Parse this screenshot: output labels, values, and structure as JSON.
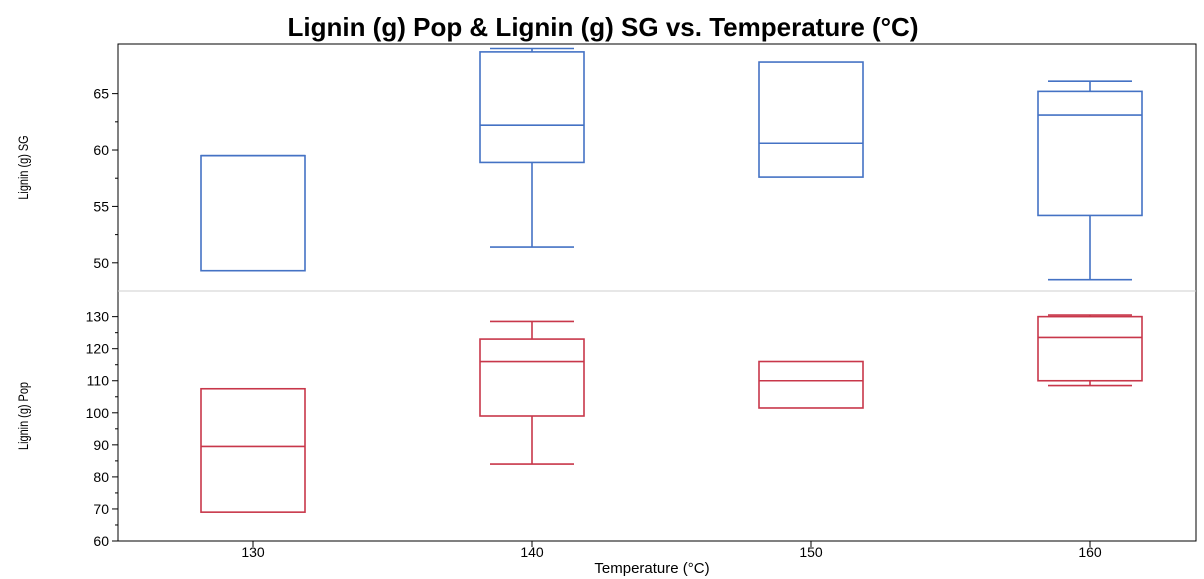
{
  "chart_data": {
    "type": "boxplot",
    "title": "Lignin (g) Pop & Lignin (g) SG vs. Temperature (°C)",
    "xlabel": "Temperature (°C)",
    "categories": [
      "130",
      "140",
      "150",
      "160"
    ],
    "legend": "none",
    "grid": false,
    "colors": {
      "sg": "#4472C4",
      "pop": "#C8374A"
    },
    "panels": [
      {
        "ylabel": "Lignin (g) SG",
        "ylim": [
          47.5,
          69.4
        ],
        "yticks": [
          50,
          55,
          60,
          65
        ],
        "boxes": [
          {
            "x": "130",
            "whisker_low": 49.3,
            "q1": 49.3,
            "median": 59.5,
            "q3": 59.5,
            "whisker_high": 59.5
          },
          {
            "x": "140",
            "whisker_low": 51.4,
            "q1": 58.9,
            "median": 62.2,
            "q3": 68.7,
            "whisker_high": 69.0
          },
          {
            "x": "150",
            "whisker_low": 57.6,
            "q1": 57.6,
            "median": 60.6,
            "q3": 67.8,
            "whisker_high": 67.8
          },
          {
            "x": "160",
            "whisker_low": 48.5,
            "q1": 54.2,
            "median": 63.1,
            "q3": 65.2,
            "whisker_high": 66.1
          }
        ]
      },
      {
        "ylabel": "Lignin (g) Pop",
        "ylim": [
          60,
          138
        ],
        "yticks": [
          60,
          70,
          80,
          90,
          100,
          110,
          120,
          130
        ],
        "boxes": [
          {
            "x": "130",
            "whisker_low": 69,
            "q1": 69,
            "median": 89.5,
            "q3": 107.5,
            "whisker_high": 107.5
          },
          {
            "x": "140",
            "whisker_low": 84,
            "q1": 99,
            "median": 116,
            "q3": 123,
            "whisker_high": 128.5
          },
          {
            "x": "150",
            "whisker_low": 101.5,
            "q1": 101.5,
            "median": 110,
            "q3": 116,
            "whisker_high": 116
          },
          {
            "x": "160",
            "whisker_low": 108.5,
            "q1": 110,
            "median": 123.5,
            "q3": 130,
            "whisker_high": 130.5
          }
        ]
      }
    ]
  }
}
